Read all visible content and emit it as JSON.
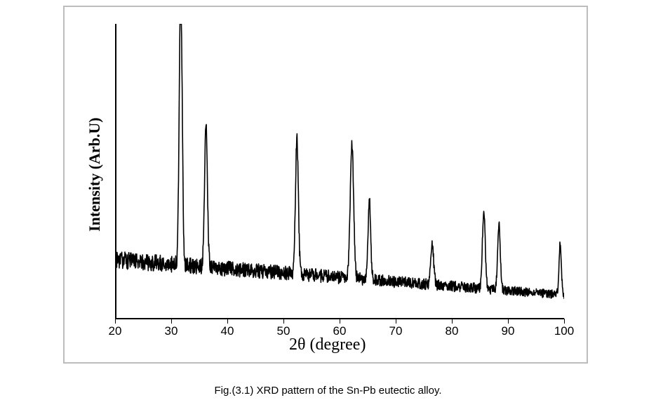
{
  "figure": {
    "caption": "Fig.(3.1) XRD pattern of the Sn-Pb eutectic alloy.",
    "xrd": {
      "type": "line",
      "xlabel": "2θ   (degree)",
      "ylabel": "Intensity (Arb.U)",
      "xlabel_fontsize": 24,
      "ylabel_fontsize": 22,
      "ylabel_fontweight": "bold",
      "xlim": [
        20,
        100
      ],
      "ylim": [
        0,
        100
      ],
      "xticks": [
        20,
        30,
        40,
        50,
        60,
        70,
        80,
        90,
        100
      ],
      "tick_fontsize": 17,
      "line_color": "#000000",
      "line_width": 1.6,
      "background_color": "#ffffff",
      "frame_border_color": "#bdbdbd",
      "axis_color": "#000000",
      "baseline_start": 20,
      "baseline_end": 8,
      "noise_amplitude_start": 3.0,
      "noise_amplitude_end": 1.4,
      "peaks": [
        {
          "x": 31.7,
          "height": 96,
          "width": 0.6
        },
        {
          "x": 36.2,
          "height": 48,
          "width": 0.6
        },
        {
          "x": 52.4,
          "height": 46,
          "width": 0.6
        },
        {
          "x": 62.2,
          "height": 46,
          "width": 0.7
        },
        {
          "x": 65.3,
          "height": 27,
          "width": 0.55
        },
        {
          "x": 76.5,
          "height": 14,
          "width": 0.6
        },
        {
          "x": 85.7,
          "height": 26,
          "width": 0.6
        },
        {
          "x": 88.4,
          "height": 22,
          "width": 0.55
        },
        {
          "x": 99.3,
          "height": 17,
          "width": 0.5
        }
      ],
      "n_points": 1600,
      "rng_seed": 31
    }
  }
}
